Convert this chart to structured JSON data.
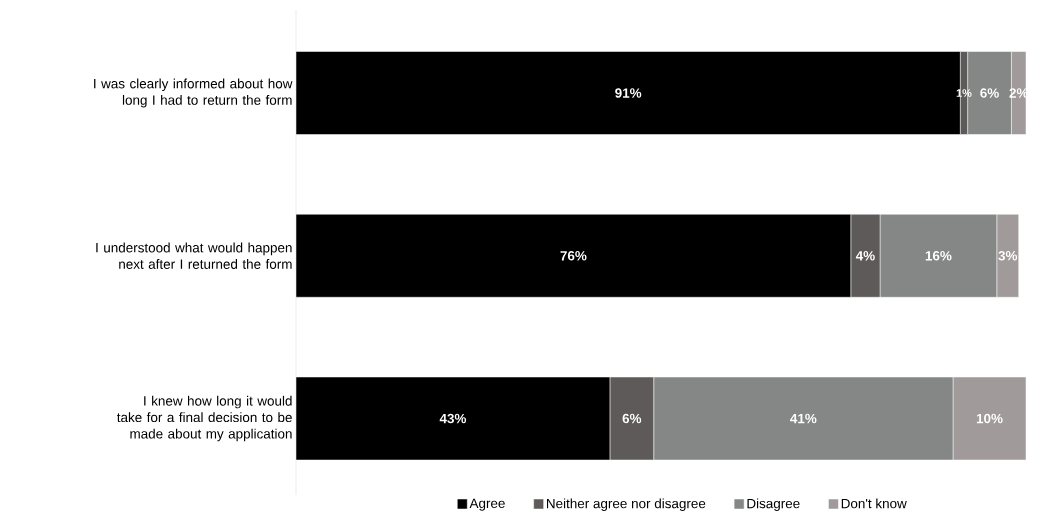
{
  "chart_data": {
    "type": "bar",
    "orientation": "horizontal",
    "stacked": true,
    "legend": "bottom",
    "grid": false,
    "categories": [
      "I was clearly informed about how long I had to return the form",
      "I understood what would happen next after I returned the form",
      "I knew how long it would take for a final decision to be made about my application"
    ],
    "series": [
      {
        "name": "Agree",
        "color": "#000000",
        "values": [
          91,
          76,
          43
        ],
        "value_labels": [
          "91%",
          "76%",
          "43%"
        ]
      },
      {
        "name": "Neither agree nor disagree",
        "color": "#5f5a5a",
        "values": [
          1,
          4,
          6
        ],
        "value_labels": [
          "1%",
          "4%",
          "6%"
        ]
      },
      {
        "name": "Disagree",
        "color": "#858786",
        "values": [
          6,
          16,
          41
        ],
        "value_labels": [
          "6%",
          "16%",
          "41%"
        ]
      },
      {
        "name": "Don't know",
        "color": "#a09a9a",
        "values": [
          2,
          3,
          10
        ],
        "value_labels": [
          "2%",
          "3%",
          "10%"
        ]
      }
    ]
  }
}
